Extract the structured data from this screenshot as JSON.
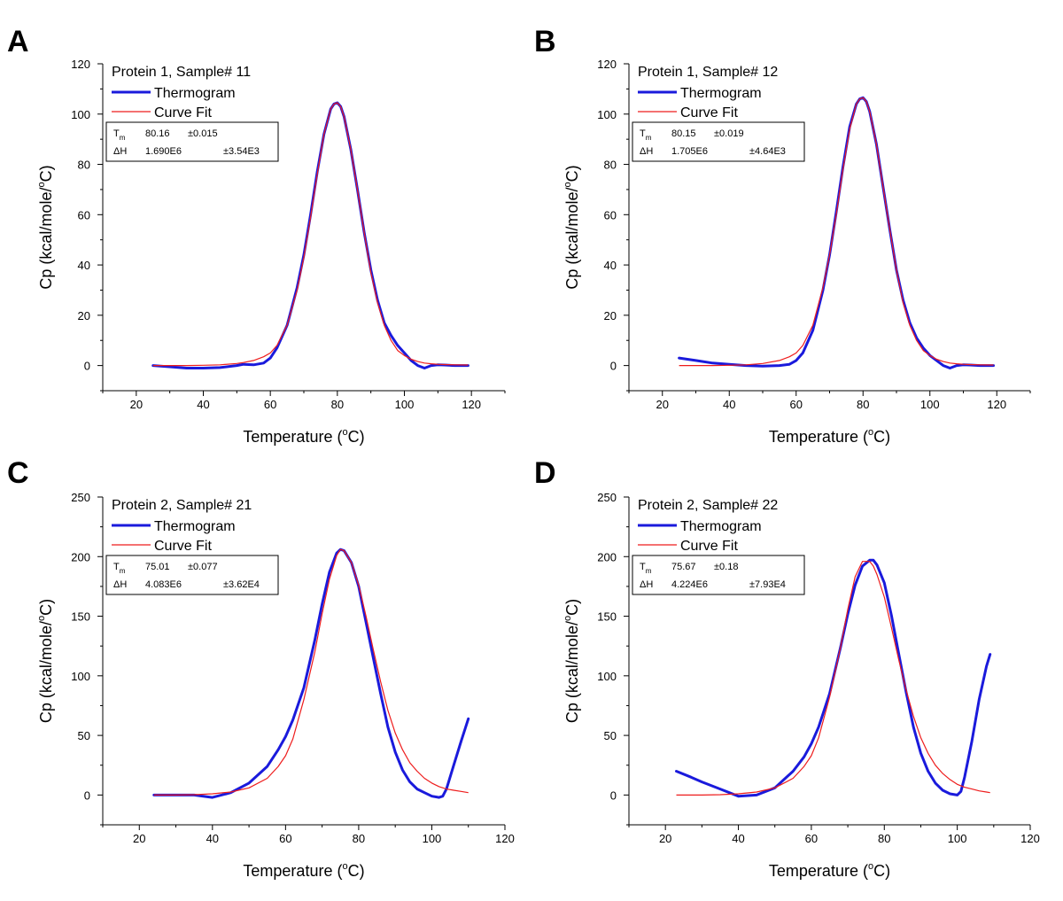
{
  "figure": {
    "xlabel_main": "Temperature (",
    "xlabel_sup": "o",
    "xlabel_end": "C)",
    "ylabel_main": "Cp (kcal/mole/",
    "ylabel_sup": "o",
    "ylabel_end": "C)",
    "legend_thermogram": "Thermogram",
    "legend_fit": "Curve Fit",
    "tm_label": "T",
    "tm_sub": "m",
    "dh_label": "ΔH",
    "colors": {
      "thermogram": "#1a1adc",
      "fit": "#ee1c1c"
    }
  },
  "chart_data": [
    {
      "panel": "A",
      "type": "line",
      "title": "Protein 1, Sample# 11",
      "xlim": [
        10,
        130
      ],
      "xticks": [
        20,
        40,
        60,
        80,
        100,
        120
      ],
      "ylim": [
        -10,
        120
      ],
      "yticks": [
        0,
        20,
        40,
        60,
        80,
        100,
        120
      ],
      "tm_value": "80.16",
      "tm_error": "±0.015",
      "dh_value": "1.690E6",
      "dh_error": "±3.54E3",
      "series": [
        {
          "name": "Thermogram",
          "x": [
            25,
            30,
            35,
            40,
            45,
            50,
            52,
            55,
            58,
            60,
            62,
            65,
            68,
            70,
            72,
            74,
            76,
            78,
            79,
            80,
            81,
            82,
            84,
            86,
            88,
            90,
            92,
            94,
            96,
            98,
            100,
            102,
            104,
            106,
            108,
            110,
            112,
            115,
            119
          ],
          "y": [
            0,
            -0.5,
            -1,
            -1,
            -0.8,
            0,
            0.5,
            0.3,
            1,
            3,
            7,
            16,
            31,
            44,
            60,
            77,
            92,
            102,
            104,
            104.5,
            103,
            99,
            86,
            70,
            53,
            38,
            26,
            17,
            12,
            8,
            5,
            2,
            0,
            -1,
            0,
            0.3,
            0.2,
            0,
            0
          ]
        },
        {
          "name": "Curve Fit",
          "x": [
            25,
            30,
            35,
            40,
            45,
            50,
            52,
            55,
            58,
            60,
            62,
            65,
            68,
            70,
            72,
            74,
            76,
            78,
            79,
            80,
            81,
            82,
            84,
            86,
            88,
            90,
            92,
            94,
            96,
            98,
            100,
            102,
            104,
            106,
            108,
            110,
            112,
            115,
            119
          ],
          "y": [
            0,
            0,
            0,
            0.1,
            0.3,
            0.8,
            1.2,
            2,
            3.5,
            5,
            8,
            16,
            30,
            43,
            59,
            76,
            92,
            102,
            104,
            104.5,
            103,
            99,
            86,
            70,
            53,
            37,
            25,
            16,
            10,
            6,
            4,
            2.5,
            1.6,
            1,
            0.7,
            0.5,
            0.4,
            0.3,
            0.2
          ]
        }
      ]
    },
    {
      "panel": "B",
      "type": "line",
      "title": "Protein 1, Sample# 12",
      "xlim": [
        10,
        130
      ],
      "xticks": [
        20,
        40,
        60,
        80,
        100,
        120
      ],
      "ylim": [
        -10,
        120
      ],
      "yticks": [
        0,
        20,
        40,
        60,
        80,
        100,
        120
      ],
      "tm_value": "80.15",
      "tm_error": "±0.019",
      "dh_value": "1.705E6",
      "dh_error": "±4.64E3",
      "series": [
        {
          "name": "Thermogram",
          "x": [
            25,
            30,
            35,
            40,
            45,
            50,
            55,
            58,
            60,
            62,
            65,
            68,
            70,
            72,
            74,
            76,
            78,
            79,
            80,
            81,
            82,
            84,
            86,
            88,
            90,
            92,
            94,
            96,
            98,
            100,
            102,
            104,
            106,
            108,
            110,
            112,
            115,
            119
          ],
          "y": [
            3,
            2,
            1,
            0.5,
            0,
            -0.2,
            0,
            0.5,
            2,
            5,
            14,
            30,
            44,
            61,
            79,
            95,
            104,
            106,
            106.5,
            105,
            101,
            88,
            71,
            54,
            38,
            26,
            17,
            11,
            7,
            4,
            2,
            0,
            -1,
            0,
            0.3,
            0.2,
            0,
            0
          ]
        },
        {
          "name": "Curve Fit",
          "x": [
            25,
            30,
            35,
            40,
            45,
            50,
            55,
            58,
            60,
            62,
            65,
            68,
            70,
            72,
            74,
            76,
            78,
            79,
            80,
            81,
            82,
            84,
            86,
            88,
            90,
            92,
            94,
            96,
            98,
            100,
            102,
            104,
            106,
            108,
            110,
            112,
            115,
            119
          ],
          "y": [
            0,
            0,
            0,
            0.1,
            0.3,
            0.8,
            2,
            3.5,
            5,
            8,
            16,
            31,
            44,
            60,
            78,
            94,
            104,
            106,
            106.5,
            105,
            101,
            88,
            71,
            54,
            38,
            25,
            16,
            10,
            6,
            4,
            2.5,
            1.6,
            1,
            0.7,
            0.5,
            0.4,
            0.3,
            0.2
          ]
        }
      ]
    },
    {
      "panel": "C",
      "type": "line",
      "title": "Protein 2, Sample# 21",
      "xlim": [
        10,
        120
      ],
      "xticks": [
        20,
        40,
        60,
        80,
        100,
        120
      ],
      "ylim": [
        -25,
        250
      ],
      "yticks": [
        0,
        50,
        100,
        150,
        200,
        250
      ],
      "tm_value": "75.01",
      "tm_error": "±0.077",
      "dh_value": "4.083E6",
      "dh_error": "±3.62E4",
      "series": [
        {
          "name": "Thermogram",
          "x": [
            24,
            30,
            35,
            40,
            45,
            50,
            55,
            58,
            60,
            62,
            65,
            68,
            70,
            72,
            74,
            75,
            76,
            78,
            80,
            82,
            84,
            86,
            88,
            90,
            92,
            94,
            96,
            98,
            100,
            102,
            103,
            104,
            106,
            108,
            110
          ],
          "y": [
            0,
            0,
            0,
            -2,
            2,
            10,
            24,
            38,
            49,
            63,
            90,
            130,
            160,
            187,
            203,
            206,
            205,
            195,
            175,
            145,
            115,
            85,
            57,
            36,
            21,
            11,
            5,
            2,
            -1,
            -2,
            -1,
            5,
            25,
            45,
            64
          ]
        },
        {
          "name": "Curve Fit",
          "x": [
            24,
            30,
            35,
            40,
            45,
            50,
            55,
            58,
            60,
            62,
            65,
            68,
            70,
            72,
            74,
            75,
            76,
            78,
            80,
            82,
            84,
            86,
            88,
            90,
            92,
            94,
            96,
            98,
            100,
            102,
            104,
            106,
            108,
            110
          ],
          "y": [
            0,
            0,
            0.3,
            1,
            2.5,
            6,
            14,
            24,
            33,
            47,
            80,
            120,
            152,
            181,
            201,
            206,
            205,
            195,
            176,
            150,
            122,
            95,
            71,
            52,
            38,
            27,
            20,
            14,
            10,
            7,
            5,
            4,
            3,
            2
          ]
        }
      ]
    },
    {
      "panel": "D",
      "type": "line",
      "title": "Protein 2, Sample# 22",
      "xlim": [
        10,
        120
      ],
      "xticks": [
        20,
        40,
        60,
        80,
        100,
        120
      ],
      "ylim": [
        -25,
        250
      ],
      "yticks": [
        0,
        50,
        100,
        150,
        200,
        250
      ],
      "tm_value": "75.67",
      "tm_error": "±0.18",
      "dh_value": "4.224E6",
      "dh_error": "±7.93E4",
      "series": [
        {
          "name": "Thermogram",
          "x": [
            23,
            27,
            30,
            35,
            40,
            45,
            50,
            55,
            58,
            60,
            62,
            65,
            68,
            70,
            72,
            74,
            76,
            77,
            78,
            80,
            82,
            84,
            86,
            88,
            90,
            92,
            94,
            96,
            98,
            100,
            101,
            102,
            104,
            106,
            108,
            109
          ],
          "y": [
            20,
            15,
            11,
            5,
            -1,
            0,
            6,
            20,
            32,
            43,
            57,
            85,
            124,
            152,
            176,
            192,
            197,
            197,
            193,
            178,
            150,
            118,
            86,
            57,
            35,
            20,
            10,
            4,
            1,
            0,
            3,
            15,
            45,
            80,
            108,
            118
          ]
        },
        {
          "name": "Curve Fit",
          "x": [
            23,
            27,
            30,
            35,
            40,
            45,
            50,
            55,
            58,
            60,
            62,
            65,
            68,
            70,
            72,
            74,
            76,
            77,
            78,
            80,
            82,
            84,
            86,
            88,
            90,
            92,
            94,
            96,
            98,
            100,
            102,
            104,
            106,
            108,
            109
          ],
          "y": [
            0,
            0,
            0,
            0.3,
            1,
            2.5,
            6,
            14,
            24,
            33,
            48,
            82,
            124,
            156,
            183,
            196,
            196,
            192,
            185,
            166,
            140,
            113,
            88,
            66,
            48,
            35,
            25,
            18,
            13,
            9,
            6.5,
            5,
            3.5,
            2.5,
            2
          ]
        }
      ]
    }
  ]
}
